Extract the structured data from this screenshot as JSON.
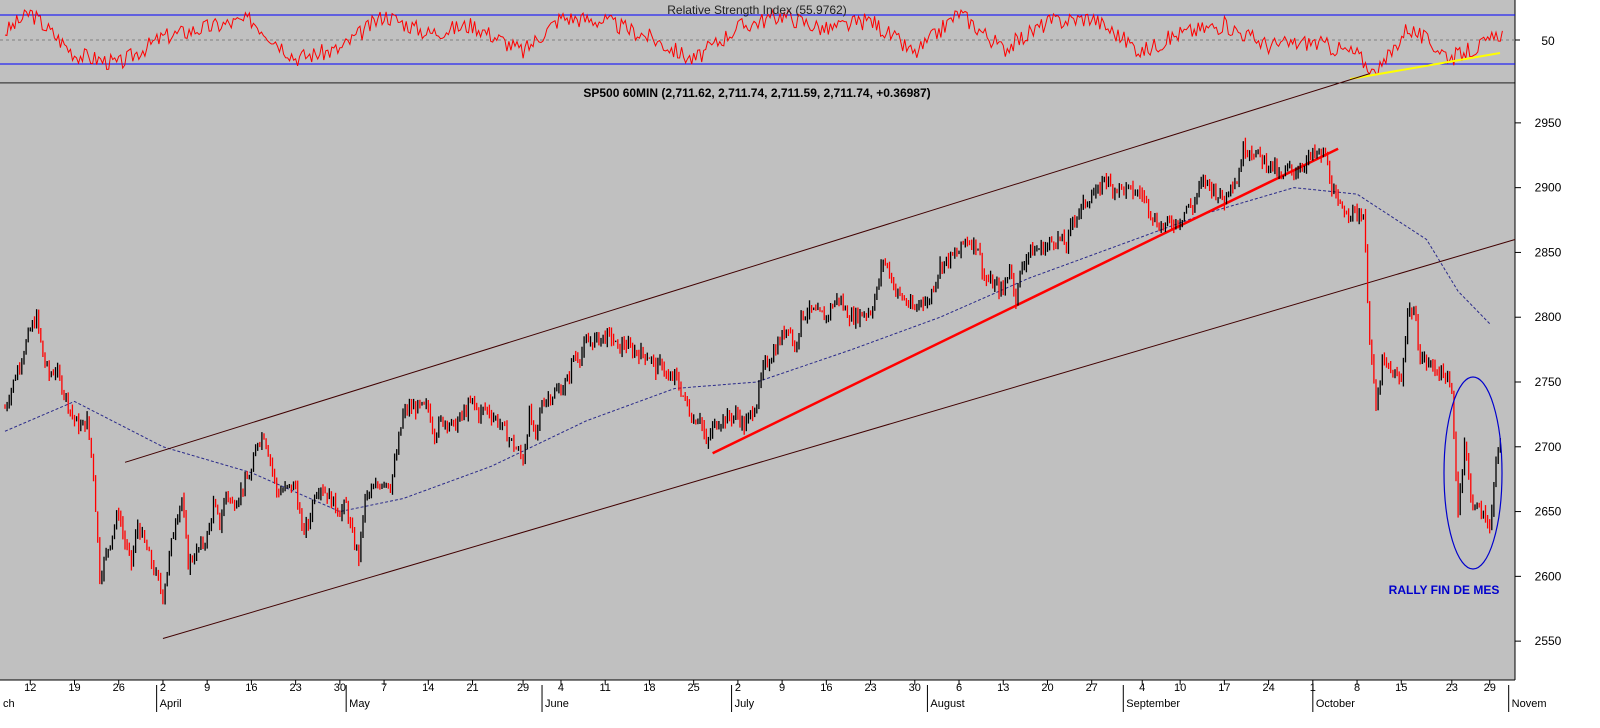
{
  "rsi_panel": {
    "title": "Relative Strength Index (55.9762)",
    "axis_label": "50"
  },
  "price_panel": {
    "title": "SP500 60MIN (2,711.62, 2,711.74, 2,711.59, 2,711.74, +0.36987)",
    "annotation": "RALLY FIN DE MES",
    "y_ticks": [
      "2950",
      "2900",
      "2850",
      "2800",
      "2750",
      "2700",
      "2650",
      "2600",
      "2550"
    ]
  },
  "x_axis": {
    "day_ticks": [
      "12",
      "19",
      "26",
      "2",
      "9",
      "16",
      "23",
      "30",
      "7",
      "14",
      "21",
      "29",
      "4",
      "11",
      "18",
      "25",
      "2",
      "9",
      "16",
      "23",
      "30",
      "6",
      "13",
      "20",
      "27",
      "4",
      "10",
      "17",
      "24",
      "1",
      "8",
      "15",
      "23",
      "29"
    ],
    "month_labels": [
      "ch",
      "April",
      "May",
      "June",
      "July",
      "August",
      "September",
      "October",
      "Novem"
    ]
  },
  "colors": {
    "panel_bg": "#c0c0c0",
    "rsi_line": "#ff0000",
    "band_line": "#0000ff",
    "up_bar": "#000000",
    "down_bar": "#ff0000",
    "trend_line": "#ff0000",
    "channel_line": "#400000",
    "moving_average": "#2a2a8a",
    "rsi_trend": "#ffff00",
    "annotation": "#0000cc"
  },
  "chart_data": {
    "type": "candlestick-ohlc",
    "instrument": "SP500",
    "interval": "60MIN",
    "y_range": [
      2520,
      2980
    ],
    "rsi_value": 55.9762,
    "last_bar": {
      "open": 2711.62,
      "high": 2711.74,
      "low": 2711.59,
      "close": 2711.74,
      "change": 0.36987
    },
    "price_path": [
      [
        "03-08",
        2730
      ],
      [
        "03-09",
        2745
      ],
      [
        "03-12",
        2790
      ],
      [
        "03-13",
        2800
      ],
      [
        "03-14",
        2770
      ],
      [
        "03-15",
        2755
      ],
      [
        "03-16",
        2760
      ],
      [
        "03-19",
        2720
      ],
      [
        "03-20",
        2715
      ],
      [
        "03-21",
        2720
      ],
      [
        "03-22",
        2680
      ],
      [
        "03-23",
        2600
      ],
      [
        "03-26",
        2650
      ],
      [
        "03-27",
        2625
      ],
      [
        "03-28",
        2610
      ],
      [
        "03-29",
        2640
      ],
      [
        "04-02",
        2585
      ],
      [
        "04-03",
        2615
      ],
      [
        "04-04",
        2645
      ],
      [
        "04-05",
        2660
      ],
      [
        "04-06",
        2610
      ],
      [
        "04-09",
        2630
      ],
      [
        "04-10",
        2655
      ],
      [
        "04-11",
        2640
      ],
      [
        "04-12",
        2665
      ],
      [
        "04-13",
        2655
      ],
      [
        "04-16",
        2680
      ],
      [
        "04-17",
        2705
      ],
      [
        "04-18",
        2710
      ],
      [
        "04-19",
        2690
      ],
      [
        "04-20",
        2665
      ],
      [
        "04-23",
        2670
      ],
      [
        "04-24",
        2635
      ],
      [
        "04-25",
        2640
      ],
      [
        "04-26",
        2665
      ],
      [
        "04-27",
        2670
      ],
      [
        "04-30",
        2650
      ],
      [
        "05-01",
        2655
      ],
      [
        "05-02",
        2630
      ],
      [
        "05-03",
        2615
      ],
      [
        "05-04",
        2660
      ],
      [
        "05-07",
        2675
      ],
      [
        "05-08",
        2670
      ],
      [
        "05-09",
        2695
      ],
      [
        "05-10",
        2725
      ],
      [
        "05-11",
        2730
      ],
      [
        "05-14",
        2730
      ],
      [
        "05-15",
        2710
      ],
      [
        "05-16",
        2720
      ],
      [
        "05-17",
        2720
      ],
      [
        "05-18",
        2715
      ],
      [
        "05-21",
        2735
      ],
      [
        "05-22",
        2725
      ],
      [
        "05-23",
        2730
      ],
      [
        "05-24",
        2725
      ],
      [
        "05-25",
        2720
      ],
      [
        "05-29",
        2690
      ],
      [
        "05-30",
        2725
      ],
      [
        "05-31",
        2705
      ],
      [
        "06-01",
        2735
      ],
      [
        "06-04",
        2745
      ],
      [
        "06-05",
        2750
      ],
      [
        "06-06",
        2770
      ],
      [
        "06-07",
        2770
      ],
      [
        "06-08",
        2780
      ],
      [
        "06-11",
        2785
      ],
      [
        "06-12",
        2785
      ],
      [
        "06-13",
        2775
      ],
      [
        "06-14",
        2780
      ],
      [
        "06-15",
        2775
      ],
      [
        "06-18",
        2770
      ],
      [
        "06-19",
        2760
      ],
      [
        "06-20",
        2765
      ],
      [
        "06-21",
        2750
      ],
      [
        "06-22",
        2755
      ],
      [
        "06-25",
        2720
      ],
      [
        "06-26",
        2725
      ],
      [
        "06-27",
        2700
      ],
      [
        "06-28",
        2715
      ],
      [
        "06-29",
        2720
      ],
      [
        "07-02",
        2725
      ],
      [
        "07-03",
        2715
      ],
      [
        "07-05",
        2735
      ],
      [
        "07-06",
        2760
      ],
      [
        "07-09",
        2785
      ],
      [
        "07-10",
        2795
      ],
      [
        "07-11",
        2775
      ],
      [
        "07-12",
        2800
      ],
      [
        "07-13",
        2805
      ],
      [
        "07-16",
        2800
      ],
      [
        "07-17",
        2810
      ],
      [
        "07-18",
        2815
      ],
      [
        "07-19",
        2805
      ],
      [
        "07-20",
        2800
      ],
      [
        "07-23",
        2805
      ],
      [
        "07-24",
        2820
      ],
      [
        "07-25",
        2845
      ],
      [
        "07-26",
        2835
      ],
      [
        "07-27",
        2820
      ],
      [
        "07-30",
        2805
      ],
      [
        "07-31",
        2815
      ],
      [
        "08-01",
        2810
      ],
      [
        "08-02",
        2825
      ],
      [
        "08-03",
        2840
      ],
      [
        "08-06",
        2850
      ],
      [
        "08-07",
        2860
      ],
      [
        "08-08",
        2858
      ],
      [
        "08-09",
        2855
      ],
      [
        "08-10",
        2830
      ],
      [
        "08-13",
        2820
      ],
      [
        "08-14",
        2840
      ],
      [
        "08-15",
        2815
      ],
      [
        "08-16",
        2840
      ],
      [
        "08-17",
        2850
      ],
      [
        "08-20",
        2855
      ],
      [
        "08-21",
        2860
      ],
      [
        "08-22",
        2860
      ],
      [
        "08-23",
        2855
      ],
      [
        "08-24",
        2875
      ],
      [
        "08-27",
        2895
      ],
      [
        "08-28",
        2895
      ],
      [
        "08-29",
        2910
      ],
      [
        "08-30",
        2900
      ],
      [
        "08-31",
        2900
      ],
      [
        "09-04",
        2895
      ],
      [
        "09-05",
        2885
      ],
      [
        "09-06",
        2875
      ],
      [
        "09-07",
        2870
      ],
      [
        "09-10",
        2875
      ],
      [
        "09-11",
        2885
      ],
      [
        "09-12",
        2885
      ],
      [
        "09-13",
        2900
      ],
      [
        "09-14",
        2905
      ],
      [
        "09-17",
        2890
      ],
      [
        "09-18",
        2905
      ],
      [
        "09-19",
        2905
      ],
      [
        "09-20",
        2930
      ],
      [
        "09-21",
        2930
      ],
      [
        "09-24",
        2918
      ],
      [
        "09-25",
        2915
      ],
      [
        "09-26",
        2905
      ],
      [
        "09-27",
        2915
      ],
      [
        "09-28",
        2912
      ],
      [
        "10-01",
        2925
      ],
      [
        "10-02",
        2925
      ],
      [
        "10-03",
        2925
      ],
      [
        "10-04",
        2900
      ],
      [
        "10-05",
        2885
      ],
      [
        "10-08",
        2880
      ],
      [
        "10-09",
        2880
      ],
      [
        "10-10",
        2785
      ],
      [
        "10-11",
        2728
      ],
      [
        "10-12",
        2765
      ],
      [
        "10-15",
        2750
      ],
      [
        "10-16",
        2805
      ],
      [
        "10-17",
        2805
      ],
      [
        "10-18",
        2770
      ],
      [
        "10-19",
        2765
      ],
      [
        "10-22",
        2755
      ],
      [
        "10-23",
        2740
      ],
      [
        "10-24",
        2650
      ],
      [
        "10-25",
        2705
      ],
      [
        "10-26",
        2660
      ],
      [
        "10-29",
        2640
      ],
      [
        "10-30",
        2685
      ],
      [
        "10-31",
        2711.74
      ]
    ],
    "moving_average": [
      [
        "03-08",
        2712
      ],
      [
        "03-19",
        2735
      ],
      [
        "04-02",
        2700
      ],
      [
        "04-16",
        2680
      ],
      [
        "04-30",
        2650
      ],
      [
        "05-10",
        2660
      ],
      [
        "05-24",
        2685
      ],
      [
        "06-08",
        2720
      ],
      [
        "06-22",
        2745
      ],
      [
        "07-05",
        2750
      ],
      [
        "07-20",
        2775
      ],
      [
        "08-03",
        2800
      ],
      [
        "08-17",
        2830
      ],
      [
        "08-31",
        2855
      ],
      [
        "09-14",
        2880
      ],
      [
        "09-28",
        2900
      ],
      [
        "10-08",
        2895
      ],
      [
        "10-19",
        2860
      ],
      [
        "10-24",
        2820
      ],
      [
        "10-29",
        2795
      ]
    ],
    "rsi_path": [
      [
        "03-08",
        56
      ],
      [
        "03-12",
        72
      ],
      [
        "03-19",
        38
      ],
      [
        "03-26",
        30
      ],
      [
        "04-02",
        52
      ],
      [
        "04-09",
        60
      ],
      [
        "04-16",
        66
      ],
      [
        "04-23",
        35
      ],
      [
        "04-30",
        42
      ],
      [
        "05-07",
        70
      ],
      [
        "05-14",
        55
      ],
      [
        "05-21",
        62
      ],
      [
        "05-29",
        40
      ],
      [
        "06-04",
        68
      ],
      [
        "06-11",
        65
      ],
      [
        "06-18",
        52
      ],
      [
        "06-25",
        33
      ],
      [
        "07-02",
        60
      ],
      [
        "07-09",
        70
      ],
      [
        "07-16",
        58
      ],
      [
        "07-23",
        66
      ],
      [
        "07-30",
        38
      ],
      [
        "08-06",
        72
      ],
      [
        "08-13",
        42
      ],
      [
        "08-20",
        64
      ],
      [
        "08-27",
        68
      ],
      [
        "09-04",
        40
      ],
      [
        "09-10",
        55
      ],
      [
        "09-17",
        62
      ],
      [
        "09-24",
        45
      ],
      [
        "10-01",
        48
      ],
      [
        "10-08",
        38
      ],
      [
        "10-11",
        20
      ],
      [
        "10-16",
        60
      ],
      [
        "10-23",
        35
      ],
      [
        "10-29",
        48
      ],
      [
        "10-31",
        57
      ]
    ],
    "trendlines": [
      {
        "kind": "channel-upper",
        "from": [
          "03-27",
          2688
        ],
        "to": [
          "10-10",
          2988
        ]
      },
      {
        "kind": "channel-lower",
        "from": [
          "04-02",
          2552
        ],
        "to": [
          "11-02",
          2860
        ]
      },
      {
        "kind": "uptrend",
        "from": [
          "06-28",
          2695
        ],
        "to": [
          "10-05",
          2930
        ]
      }
    ]
  }
}
